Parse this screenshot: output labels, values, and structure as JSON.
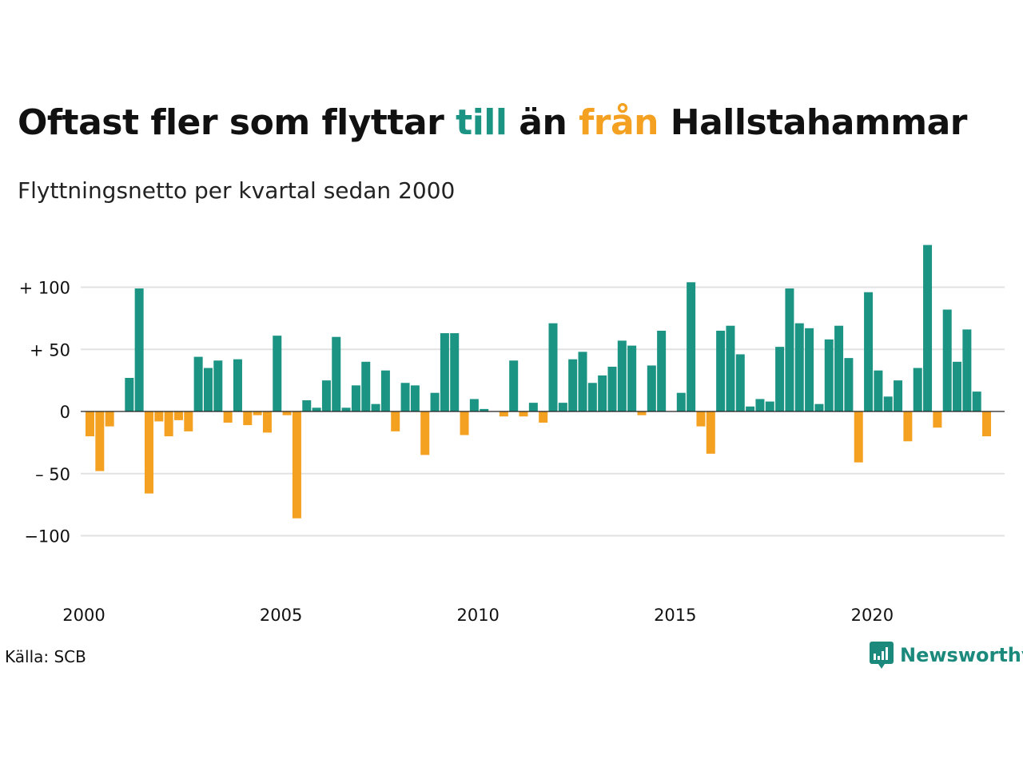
{
  "colors": {
    "positive": "#1b9484",
    "negative": "#f4a020",
    "grid": "#e2e2e2",
    "brand": "#1b8a7d"
  },
  "header": {
    "title_part1": "Oftast fler som flyttar ",
    "title_till": "till",
    "title_part2": " än ",
    "title_fran": "från",
    "title_part3": " Hallstahammar",
    "subtitle": "Flyttningsnetto per kvartal sedan 2000"
  },
  "footer": {
    "source": "Källa: SCB",
    "brand": "Newsworthy",
    "brand_icon": "newsworthy-chart-icon"
  },
  "chart_data": {
    "type": "bar",
    "title": "Oftast fler som flyttar till än från Hallstahammar",
    "subtitle": "Flyttningsnetto per kvartal sedan 2000",
    "xlabel": "",
    "ylabel": "",
    "ylim": [
      -130,
      135
    ],
    "grid": true,
    "y_ticks": [
      {
        "value": 100,
        "label": "+ 100"
      },
      {
        "value": 50,
        "label": "+  50"
      },
      {
        "value": 0,
        "label": "0"
      },
      {
        "value": -50,
        "label": "– 50"
      },
      {
        "value": -100,
        "label": "−100"
      }
    ],
    "x_ticks": [
      {
        "value": 2000,
        "label": "2000"
      },
      {
        "value": 2005,
        "label": "2005"
      },
      {
        "value": 2010,
        "label": "2010"
      },
      {
        "value": 2015,
        "label": "2015"
      },
      {
        "value": 2020,
        "label": "2020"
      }
    ],
    "x_start": 2000,
    "periods_per_year": 4,
    "values": [
      -20,
      -48,
      -12,
      0,
      27,
      99,
      -66,
      -8,
      -20,
      -7,
      -16,
      44,
      35,
      41,
      -9,
      42,
      -11,
      -3,
      -17,
      61,
      -3,
      -86,
      9,
      3,
      25,
      60,
      3,
      21,
      40,
      6,
      33,
      -16,
      23,
      21,
      -35,
      15,
      63,
      63,
      -19,
      10,
      2,
      0,
      -4,
      41,
      -4,
      7,
      -9,
      71,
      7,
      42,
      48,
      23,
      29,
      36,
      57,
      53,
      -3,
      37,
      65,
      0,
      15,
      104,
      -12,
      -34,
      65,
      69,
      46,
      4,
      10,
      8,
      52,
      99,
      71,
      67,
      6,
      58,
      69,
      43,
      -41,
      96,
      33,
      12,
      25,
      -24,
      35,
      134,
      -13,
      82,
      40,
      66,
      16,
      -20
    ]
  }
}
